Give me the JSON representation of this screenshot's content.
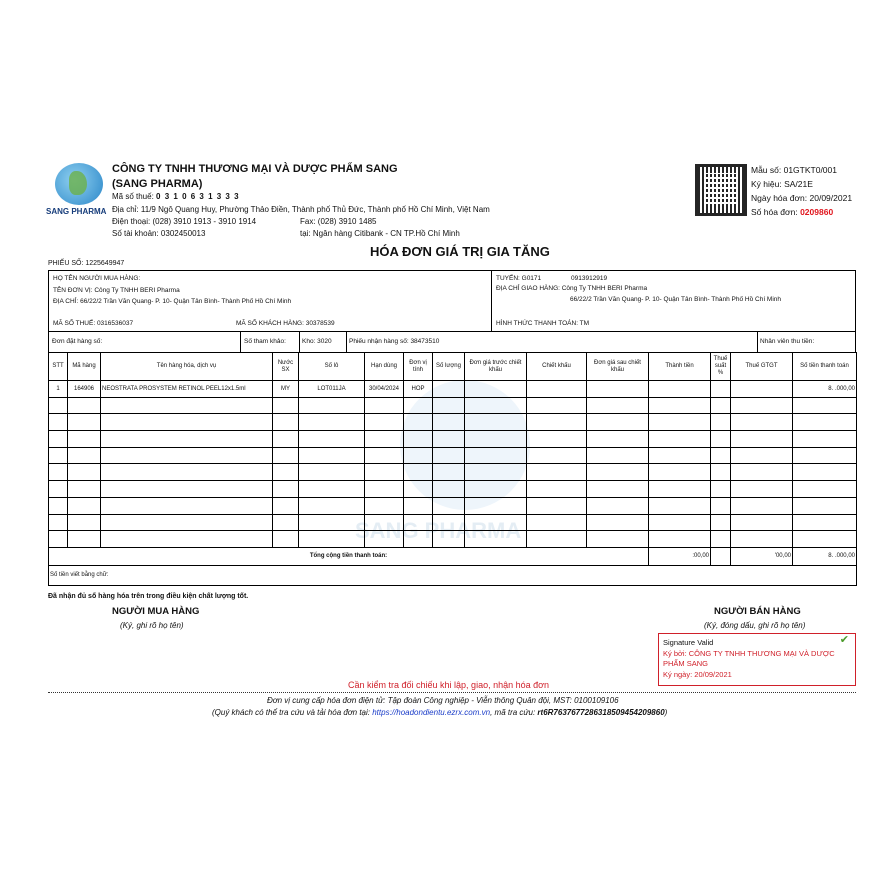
{
  "company": {
    "logo_text": "SANG PHARMA",
    "name": "CÔNG TY TNHH THƯƠNG MẠI VÀ DƯỢC PHẨM SANG",
    "short": "(SANG PHARMA)",
    "tax_label": "Mã số thuế:",
    "tax": "0 3 1 0 6 3 1 3 3 3",
    "address": "Địa chỉ:  11/9 Ngô Quang Huy, Phường Thảo Điền, Thành phố Thủ Đức, Thành phố Hồ Chí Minh, Việt Nam",
    "phone": "Điện thoại:  (028) 3910 1913 - 3910 1914",
    "fax": "Fax:  (028) 3910 1485",
    "account": "Số tài khoản:  0302450013",
    "bank": "tại:  Ngân hàng Citibank - CN TP.Hồ Chí Minh"
  },
  "invoice_meta": {
    "form": "Mẫu số: 01GTKT0/001",
    "symbol": "Ký hiệu: SA/21E",
    "date": "Ngày hóa đơn:  20/09/2021",
    "number_label": "Số hóa đơn:",
    "number": "0209860",
    "number_color": "#e0161e"
  },
  "title": "HÓA ĐƠN GIÁ TRỊ GIA TĂNG",
  "slip": "PHIẾU SỐ: 1225649947",
  "buyer": {
    "name_label": "HỌ TÊN NGƯỜI MUA HÀNG:",
    "unit": "TÊN ĐƠN VỊ:  Công Ty TNHH BERI Pharma",
    "address": "ĐỊA CHỈ:  66/22/2 Trần Văn Quang- P. 10- Quận Tân Bình- Thành Phố Hồ Chí Minh",
    "tax": "MÃ SỐ THUẾ:  0316536037",
    "customer_code": "MÃ SỐ KHÁCH HÀNG:  30378539",
    "route": "TUYẾN:  G0171",
    "route_phone": "0913912919",
    "delivery_label": "ĐỊA CHỈ GIAO HÀNG:  Công Ty TNHH BERI Pharma",
    "delivery_address": "66/22/2 Trần Văn Quang- P. 10- Quận Tân Bình- Thành Phố Hồ Chí Minh",
    "payment": "HÌNH THỨC THANH TOÁN:  TM"
  },
  "order": {
    "order_no": "Đơn đặt hàng số:",
    "ref": "Số tham khảo:",
    "warehouse": "Kho:  3020",
    "receipt": "Phiếu nhận hàng số:  38473510",
    "collector": "Nhân viên thu tiền:"
  },
  "columns": [
    "STT",
    "Mã hàng",
    "Tên hàng hóa, dịch vụ",
    "Nước SX",
    "Số lô",
    "Hạn dùng",
    "Đơn vị tính",
    "Số lượng",
    "Đơn giá trước chiết khấu",
    "Chiết khấu",
    "Đơn giá sau chiết khấu",
    "Thành tiền",
    "Thuế suất %",
    "Thuế GTGT",
    "Số tiền thanh toán"
  ],
  "rows": [
    [
      "1",
      "164906",
      "NEOSTRATA PROSYSTEM RETINOL PEEL12x1.5ml",
      "MY",
      "LOT011JA",
      "30/04/2024",
      "HOP",
      "",
      "",
      "",
      "",
      "",
      "",
      "",
      "8.  .000,00"
    ]
  ],
  "totals": {
    "label": "Tổng cộng tiền thanh toán:",
    "subtotal": ":00,00",
    "vat": "'00,00",
    "total": "8.   .000,00"
  },
  "words_label": "Số tiền viết bằng chữ:",
  "received": "Đã nhận đủ số hàng hóa trên trong điều kiện chất lượng tốt.",
  "buyer_sign": {
    "title": "NGƯỜI MUA HÀNG",
    "note": "(Ký, ghi rõ họ tên)"
  },
  "seller_sign": {
    "title": "NGƯỜI BÁN HÀNG",
    "note": "(Ký, đóng dấu, ghi rõ họ tên)"
  },
  "signature": {
    "status": "Signature Valid",
    "signed_by": "Ký bởi: CÔNG TY TNHH THƯƠNG MẠI VÀ DƯỢC PHẨM SANG",
    "signed_date": "Ký ngày: 20/09/2021"
  },
  "watermark": "SANG PHARMA",
  "check_note": "Cần kiểm tra đối chiếu khi lập, giao, nhận hóa đơn",
  "footer": {
    "provider": "Đơn vị cung cấp hóa đơn điện tử: Tập đoàn Công nghiệp - Viễn thông Quân đội, MST: 0100109106",
    "lookup_prefix": "(Quý khách có thể tra cứu và tải hóa đơn tại:",
    "lookup_url": "https://hoadondientu.ezrx.com.vn",
    "lookup_mid": ", mã tra cứu:",
    "lookup_code": "rt6R7637677286318509454209860",
    "lookup_end": ")"
  }
}
